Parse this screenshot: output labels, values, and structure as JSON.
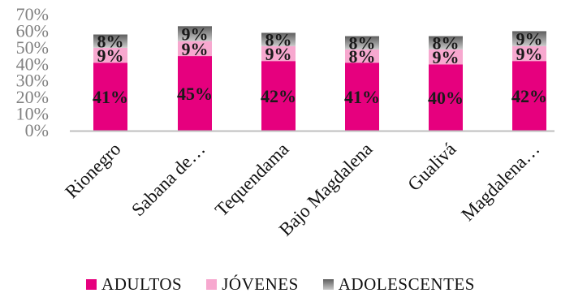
{
  "chart_data": {
    "type": "bar",
    "stacked": true,
    "categories": [
      "Rionegro",
      "Sabana de…",
      "Tequendama",
      "Bajo Magdalena",
      "Gualivá",
      "Magdalena…"
    ],
    "series": [
      {
        "name": "ADULTOS",
        "color": "#e6007e",
        "values": [
          41,
          45,
          42,
          41,
          40,
          42
        ],
        "labels": [
          "41%",
          "45%",
          "42%",
          "41%",
          "40%",
          "42%"
        ]
      },
      {
        "name": "JÓVENES",
        "color": "#f7a8cf",
        "values": [
          9,
          9,
          9,
          8,
          9,
          9
        ],
        "labels": [
          "9%",
          "9%",
          "9%",
          "8%",
          "9%",
          "9%"
        ]
      },
      {
        "name": "ADOLESCENTES",
        "color": "#8c8c8c",
        "values": [
          8,
          9,
          8,
          8,
          8,
          9
        ],
        "labels": [
          "8%",
          "9%",
          "8%",
          "8%",
          "8%",
          "9%"
        ]
      }
    ],
    "y_ticks": [
      "0%",
      "10%",
      "20%",
      "30%",
      "40%",
      "50%",
      "60%",
      "70%"
    ],
    "ylim": [
      0,
      70
    ],
    "grid": false,
    "legend_position": "bottom"
  }
}
